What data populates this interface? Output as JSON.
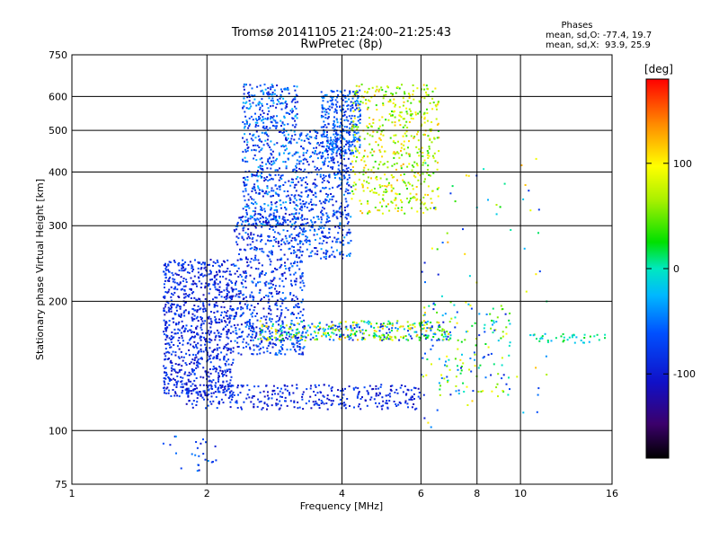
{
  "chart_data": {
    "type": "scatter",
    "title": "Tromsø 20141105 21:24:00–21:25:43",
    "subtitle": "RwPretec (8p)",
    "xlabel": "Frequency [MHz]",
    "ylabel": "Stationary phase Virtual Height [km]",
    "x_scale": "log",
    "y_scale": "log",
    "xlim": [
      1,
      16
    ],
    "ylim": [
      75,
      750
    ],
    "x_ticks": [
      1,
      2,
      4,
      6,
      8,
      10,
      16
    ],
    "x_tick_labels": [
      "1",
      "2",
      "4",
      "6",
      "8",
      "10",
      "16"
    ],
    "y_ticks": [
      75,
      100,
      200,
      300,
      400,
      500,
      600,
      750
    ],
    "y_tick_labels": [
      "75",
      "100",
      "200",
      "300",
      "400",
      "500",
      "600",
      "750"
    ],
    "grid": true,
    "stats": {
      "header": "Phases",
      "lines": [
        "mean, sd,O: -77.4, 19.7",
        "mean, sd,X:  93.9, 25.9"
      ]
    },
    "colorbar": {
      "label": "[deg]",
      "range": [
        -180,
        180
      ],
      "ticks": [
        100,
        0,
        -100
      ],
      "tick_labels": [
        "100",
        "0",
        "-100"
      ]
    },
    "clusters": [
      {
        "f": [
          1.6,
          2.3
        ],
        "h": [
          120,
          250
        ],
        "phase": [
          -120,
          -60
        ],
        "n": 900
      },
      {
        "f": [
          2.3,
          3.3
        ],
        "h": [
          150,
          320
        ],
        "phase": [
          -120,
          -40
        ],
        "n": 700
      },
      {
        "f": [
          2.4,
          3.2
        ],
        "h": [
          300,
          640
        ],
        "phase": [
          -110,
          -20
        ],
        "n": 600
      },
      {
        "f": [
          3.2,
          4.2
        ],
        "h": [
          250,
          500
        ],
        "phase": [
          -110,
          -30
        ],
        "n": 500
      },
      {
        "f": [
          3.6,
          4.4
        ],
        "h": [
          440,
          620
        ],
        "phase": [
          -100,
          -30
        ],
        "n": 300
      },
      {
        "f": [
          4.2,
          6.6
        ],
        "h": [
          320,
          640
        ],
        "phase": [
          30,
          130
        ],
        "n": 500
      },
      {
        "f": [
          1.8,
          6.0
        ],
        "h": [
          112,
          128
        ],
        "phase": [
          -120,
          -60
        ],
        "n": 350
      },
      {
        "f": [
          2.6,
          7.0
        ],
        "h": [
          162,
          180
        ],
        "phase": [
          -110,
          130
        ],
        "n": 400
      },
      {
        "f": [
          6.0,
          9.5
        ],
        "h": [
          120,
          200
        ],
        "phase": [
          -100,
          110
        ],
        "n": 150
      },
      {
        "f": [
          10.5,
          15.5
        ],
        "h": [
          160,
          168
        ],
        "phase": [
          -30,
          30
        ],
        "n": 40
      },
      {
        "f": [
          1.6,
          2.1
        ],
        "h": [
          80,
          97
        ],
        "phase": [
          -110,
          -30
        ],
        "n": 25
      },
      {
        "f": [
          6.0,
          11.5
        ],
        "h": [
          100,
          440
        ],
        "phase": [
          -100,
          130
        ],
        "n": 70
      }
    ]
  }
}
